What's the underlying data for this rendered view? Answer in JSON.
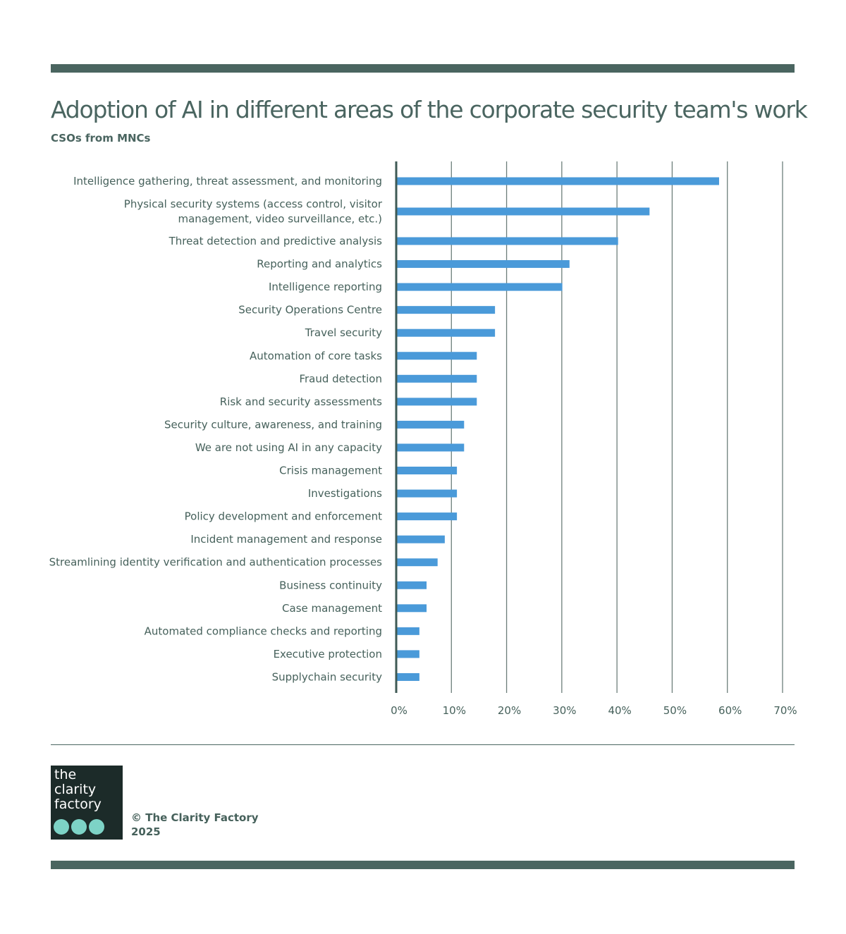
{
  "header": {
    "title": "Adoption of AI in different areas of the corporate security team's work",
    "subtitle": "CSOs from MNCs"
  },
  "chart_data": {
    "type": "bar",
    "orientation": "horizontal",
    "title": "Adoption of AI in different areas of the corporate security team's work",
    "subtitle": "CSOs from MNCs",
    "xlabel": "",
    "ylabel": "",
    "xlim": [
      0,
      70
    ],
    "ticks": [
      "0%",
      "10%",
      "20%",
      "30%",
      "40%",
      "50%",
      "60%",
      "70%"
    ],
    "grid": true,
    "bar_color": "#4a9ad9",
    "categories": [
      [
        "Intelligence gathering, threat assessment, and monitoring"
      ],
      [
        "Physical security systems (access control, visitor",
        "management, video surveillance, etc.)"
      ],
      [
        "Threat detection and predictive analysis"
      ],
      [
        "Reporting and analytics"
      ],
      [
        "Intelligence reporting"
      ],
      [
        "Security Operations Centre"
      ],
      [
        "Travel security"
      ],
      [
        "Automation of core tasks"
      ],
      [
        "Fraud detection"
      ],
      [
        "Risk and security assessments"
      ],
      [
        "Security culture, awareness, and training"
      ],
      [
        "We are not using AI in any capacity"
      ],
      [
        "Crisis management"
      ],
      [
        "Investigations"
      ],
      [
        "Policy development and enforcement"
      ],
      [
        "Incident management and response"
      ],
      [
        "Streamlining identity verification and authentication processes"
      ],
      [
        "Business continuity"
      ],
      [
        "Case management"
      ],
      [
        "Automated compliance checks and reporting"
      ],
      [
        "Executive protection"
      ],
      [
        "Supplychain security"
      ]
    ],
    "values": [
      58.5,
      45.9,
      40.2,
      31.4,
      30.1,
      17.9,
      17.9,
      14.6,
      14.6,
      14.6,
      12.3,
      12.3,
      11.0,
      11.0,
      11.0,
      8.8,
      7.5,
      5.5,
      5.5,
      4.2,
      4.2,
      4.2
    ]
  },
  "footer": {
    "logo_text": [
      "the",
      "clarity",
      "factory"
    ],
    "copyright": "© The Clarity Factory",
    "year": "2025"
  }
}
